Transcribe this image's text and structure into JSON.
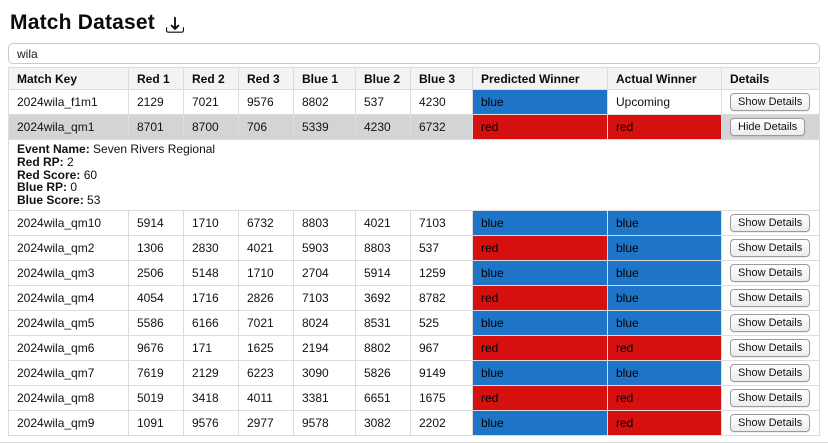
{
  "page": {
    "title": "Match Dataset",
    "title_icon": "download"
  },
  "search": {
    "value": "wila",
    "placeholder": ""
  },
  "table": {
    "columns": [
      "Match Key",
      "Red 1",
      "Red 2",
      "Red 3",
      "Blue 1",
      "Blue 2",
      "Blue 3",
      "Predicted Winner",
      "Actual Winner",
      "Details"
    ],
    "colors": {
      "blue": "#1e75c8",
      "red": "#d60f0f",
      "selected_row": "#d4d4d4",
      "header_bg": "#f3f3f3"
    },
    "rows": [
      {
        "key": "2024wila_f1m1",
        "teams": [
          "2129",
          "7021",
          "9576",
          "8802",
          "537",
          "4230"
        ],
        "predicted": "blue",
        "actual": "Upcoming",
        "button": "Show Details",
        "selected": false
      },
      {
        "key": "2024wila_qm1",
        "teams": [
          "8701",
          "8700",
          "706",
          "5339",
          "4230",
          "6732"
        ],
        "predicted": "red",
        "actual": "red",
        "button": "Hide Details",
        "selected": true,
        "details_panel": {
          "lines": [
            {
              "label": "Event Name:",
              "value": "Seven Rivers Regional"
            },
            {
              "label": "Red RP:",
              "value": "2"
            },
            {
              "label": "Red Score:",
              "value": "60"
            },
            {
              "label": "Blue RP:",
              "value": "0"
            },
            {
              "label": "Blue Score:",
              "value": "53"
            }
          ]
        }
      },
      {
        "key": "2024wila_qm10",
        "teams": [
          "5914",
          "1710",
          "6732",
          "8803",
          "4021",
          "7103"
        ],
        "predicted": "blue",
        "actual": "blue",
        "button": "Show Details",
        "selected": false
      },
      {
        "key": "2024wila_qm2",
        "teams": [
          "1306",
          "2830",
          "4021",
          "5903",
          "8803",
          "537"
        ],
        "predicted": "red",
        "actual": "blue",
        "button": "Show Details",
        "selected": false
      },
      {
        "key": "2024wila_qm3",
        "teams": [
          "2506",
          "5148",
          "1710",
          "2704",
          "5914",
          "1259"
        ],
        "predicted": "blue",
        "actual": "blue",
        "button": "Show Details",
        "selected": false
      },
      {
        "key": "2024wila_qm4",
        "teams": [
          "4054",
          "1716",
          "2826",
          "7103",
          "3692",
          "8782"
        ],
        "predicted": "red",
        "actual": "blue",
        "button": "Show Details",
        "selected": false
      },
      {
        "key": "2024wila_qm5",
        "teams": [
          "5586",
          "6166",
          "7021",
          "8024",
          "8531",
          "525"
        ],
        "predicted": "blue",
        "actual": "blue",
        "button": "Show Details",
        "selected": false
      },
      {
        "key": "2024wila_qm6",
        "teams": [
          "9676",
          "171",
          "1625",
          "2194",
          "8802",
          "967"
        ],
        "predicted": "red",
        "actual": "red",
        "button": "Show Details",
        "selected": false
      },
      {
        "key": "2024wila_qm7",
        "teams": [
          "7619",
          "2129",
          "6223",
          "3090",
          "5826",
          "9149"
        ],
        "predicted": "blue",
        "actual": "blue",
        "button": "Show Details",
        "selected": false
      },
      {
        "key": "2024wila_qm8",
        "teams": [
          "5019",
          "3418",
          "4011",
          "3381",
          "6651",
          "1675"
        ],
        "predicted": "red",
        "actual": "red",
        "button": "Show Details",
        "selected": false
      },
      {
        "key": "2024wila_qm9",
        "teams": [
          "1091",
          "9576",
          "2977",
          "9578",
          "3082",
          "2202"
        ],
        "predicted": "blue",
        "actual": "red",
        "button": "Show Details",
        "selected": false
      }
    ]
  }
}
